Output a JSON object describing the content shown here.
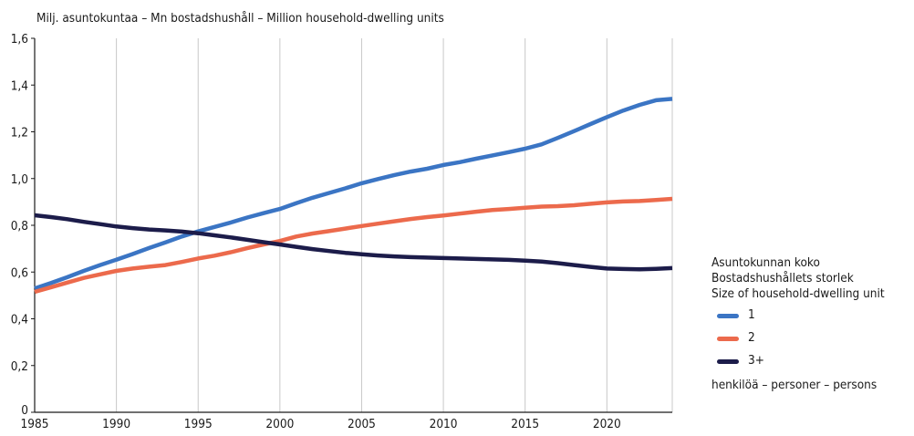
{
  "chart_data": {
    "type": "line",
    "title": "Milj. asuntokuntaa – Mn bostadshushåll – Million household-dwelling units",
    "xlim": [
      1985,
      2024
    ],
    "ylim": [
      0,
      1.6
    ],
    "x_ticks": [
      "1985",
      "1990",
      "1995",
      "2000",
      "2005",
      "2010",
      "2015",
      "2020"
    ],
    "y_ticks": [
      "0",
      "0,2",
      "0,4",
      "0,6",
      "0,8",
      "1,0",
      "1,2",
      "1,4",
      "1,6"
    ],
    "grid": "vertical",
    "x": [
      1985,
      1986,
      1987,
      1988,
      1989,
      1990,
      1991,
      1992,
      1993,
      1994,
      1995,
      1996,
      1997,
      1998,
      1999,
      2000,
      2001,
      2002,
      2003,
      2004,
      2005,
      2006,
      2007,
      2008,
      2009,
      2010,
      2011,
      2012,
      2013,
      2014,
      2015,
      2016,
      2017,
      2018,
      2019,
      2020,
      2021,
      2022,
      2023,
      2024
    ],
    "series": [
      {
        "name": "1",
        "color": "#3b75c4",
        "values": [
          0.53,
          0.553,
          0.578,
          0.605,
          0.63,
          0.653,
          0.677,
          0.703,
          0.727,
          0.752,
          0.774,
          0.793,
          0.812,
          0.833,
          0.852,
          0.87,
          0.895,
          0.918,
          0.938,
          0.958,
          0.98,
          0.998,
          1.015,
          1.03,
          1.042,
          1.058,
          1.07,
          1.085,
          1.099,
          1.113,
          1.128,
          1.146,
          1.174,
          1.203,
          1.233,
          1.263,
          1.291,
          1.315,
          1.335,
          1.341
        ]
      },
      {
        "name": "2",
        "color": "#ec6a4c",
        "values": [
          0.515,
          0.535,
          0.555,
          0.575,
          0.59,
          0.605,
          0.615,
          0.623,
          0.63,
          0.643,
          0.658,
          0.67,
          0.685,
          0.702,
          0.718,
          0.733,
          0.752,
          0.765,
          0.775,
          0.786,
          0.797,
          0.807,
          0.817,
          0.827,
          0.835,
          0.842,
          0.85,
          0.858,
          0.865,
          0.87,
          0.875,
          0.88,
          0.882,
          0.886,
          0.892,
          0.898,
          0.902,
          0.904,
          0.908,
          0.913
        ]
      },
      {
        "name": "3+",
        "color": "#1c1c4a",
        "values": [
          0.843,
          0.835,
          0.826,
          0.815,
          0.805,
          0.795,
          0.788,
          0.782,
          0.778,
          0.773,
          0.766,
          0.757,
          0.748,
          0.738,
          0.728,
          0.718,
          0.708,
          0.698,
          0.69,
          0.682,
          0.676,
          0.671,
          0.667,
          0.664,
          0.662,
          0.66,
          0.658,
          0.656,
          0.654,
          0.652,
          0.649,
          0.645,
          0.638,
          0.63,
          0.622,
          0.615,
          0.613,
          0.612,
          0.614,
          0.617
        ]
      }
    ],
    "legend": {
      "title_lines": [
        "Asuntokunnan koko",
        "Bostadshushållets storlek",
        "Size of household-dwelling unit"
      ],
      "placement": "right",
      "units_note": "henkilöä – personer – persons"
    }
  }
}
